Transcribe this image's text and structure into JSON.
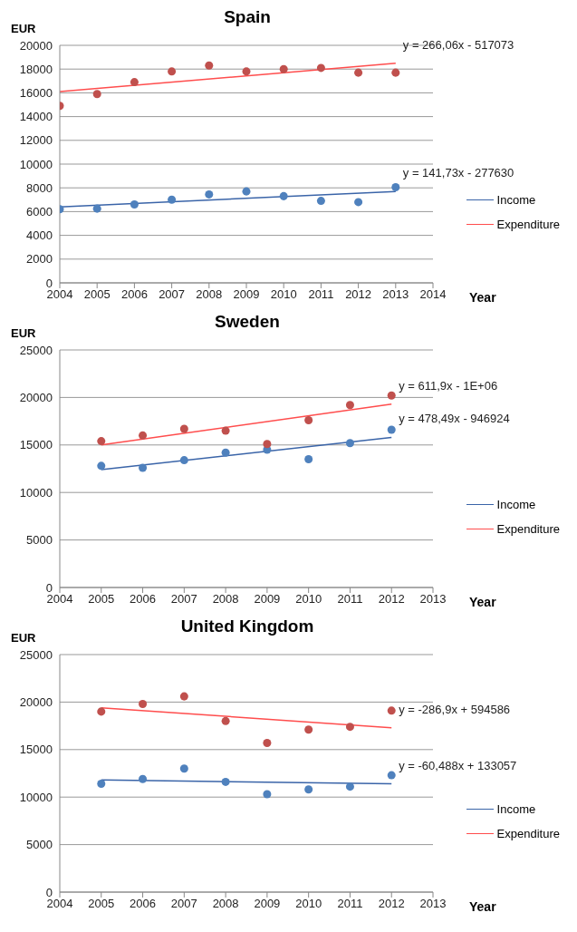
{
  "chart_data": [
    {
      "type": "scatter",
      "title": "Spain",
      "xlabel": "Year",
      "ylabel": "EUR",
      "x": [
        2004,
        2005,
        2006,
        2007,
        2008,
        2009,
        2010,
        2011,
        2012,
        2013
      ],
      "xlim": [
        2004,
        2014
      ],
      "xticks": [
        2004,
        2005,
        2006,
        2007,
        2008,
        2009,
        2010,
        2011,
        2012,
        2013,
        2014
      ],
      "ylim": [
        0,
        20000
      ],
      "yticks": [
        0,
        2000,
        4000,
        6000,
        8000,
        10000,
        12000,
        14000,
        16000,
        18000,
        20000
      ],
      "grid": "y",
      "legend": "right",
      "marker": "circle",
      "series": [
        {
          "color": "#4f81bd",
          "values": [
            6200,
            6250,
            6600,
            7000,
            7450,
            7700,
            7300,
            6900,
            6800,
            8050
          ]
        },
        {
          "color": "#c0504d",
          "values": [
            14900,
            15900,
            16900,
            17800,
            18300,
            17800,
            18000,
            18100,
            17700,
            17700
          ]
        },
        {
          "type": "line",
          "name": "Income",
          "color": "#3a64a8",
          "marker": "none",
          "x": [
            2004,
            2013
          ],
          "values": [
            6400,
            7700
          ]
        },
        {
          "type": "line",
          "name": "Expenditure",
          "color": "#ff4d4d",
          "marker": "none",
          "x": [
            2004,
            2013
          ],
          "values": [
            16100,
            18500
          ]
        }
      ],
      "annotations": [
        "y = 266,06x - 517073",
        "y = 141,73x - 277630"
      ]
    },
    {
      "type": "scatter",
      "title": "Sweden",
      "xlabel": "Year",
      "ylabel": "EUR",
      "x": [
        2005,
        2006,
        2007,
        2008,
        2009,
        2010,
        2011,
        2012
      ],
      "xlim": [
        2004,
        2013
      ],
      "xticks": [
        2004,
        2005,
        2006,
        2007,
        2008,
        2009,
        2010,
        2011,
        2012,
        2013
      ],
      "ylim": [
        0,
        25000
      ],
      "yticks": [
        0,
        5000,
        10000,
        15000,
        20000,
        25000
      ],
      "grid": "y",
      "legend": "right",
      "marker": "circle",
      "series": [
        {
          "color": "#4f81bd",
          "values": [
            12800,
            12600,
            13400,
            14200,
            14500,
            13500,
            15200,
            16600
          ]
        },
        {
          "color": "#c0504d",
          "values": [
            15400,
            16000,
            16700,
            16500,
            15100,
            17600,
            19200,
            20200
          ]
        },
        {
          "type": "line",
          "name": "Income",
          "color": "#3a64a8",
          "marker": "none",
          "x": [
            2005,
            2012
          ],
          "values": [
            12400,
            15800
          ]
        },
        {
          "type": "line",
          "name": "Expenditure",
          "color": "#ff4d4d",
          "marker": "none",
          "x": [
            2005,
            2012
          ],
          "values": [
            15000,
            19300
          ]
        }
      ],
      "annotations": [
        "y = 611,9x - 1E+06",
        "y = 478,49x - 946924"
      ]
    },
    {
      "type": "scatter",
      "title": "United Kingdom",
      "xlabel": "Year",
      "ylabel": "EUR",
      "x": [
        2005,
        2006,
        2007,
        2008,
        2009,
        2010,
        2011,
        2012
      ],
      "xlim": [
        2004,
        2013
      ],
      "xticks": [
        2004,
        2005,
        2006,
        2007,
        2008,
        2009,
        2010,
        2011,
        2012,
        2013
      ],
      "ylim": [
        0,
        25000
      ],
      "yticks": [
        0,
        5000,
        10000,
        15000,
        20000,
        25000
      ],
      "grid": "y",
      "legend": "right",
      "marker": "circle",
      "series": [
        {
          "color": "#4f81bd",
          "values": [
            11400,
            11900,
            13000,
            11600,
            10300,
            10800,
            11100,
            12300
          ]
        },
        {
          "color": "#c0504d",
          "values": [
            19000,
            19800,
            20600,
            18000,
            15700,
            17100,
            17400,
            19100
          ]
        },
        {
          "type": "line",
          "name": "Income",
          "color": "#3a64a8",
          "marker": "none",
          "x": [
            2005,
            2012
          ],
          "values": [
            11800,
            11400
          ]
        },
        {
          "type": "line",
          "name": "Expenditure",
          "color": "#ff4d4d",
          "marker": "none",
          "x": [
            2005,
            2012
          ],
          "values": [
            19400,
            17300
          ]
        }
      ],
      "annotations": [
        "y = -286,9x + 594586",
        "y = -60,488x + 133057"
      ]
    }
  ]
}
